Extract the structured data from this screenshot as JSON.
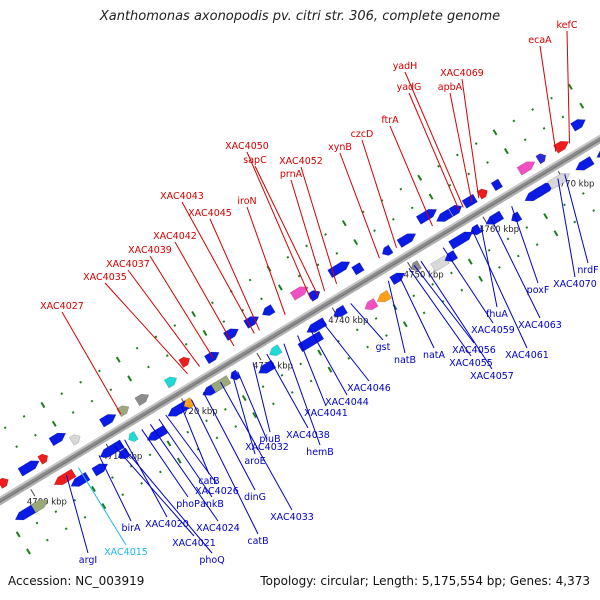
{
  "title": "Xanthomonas axonopodis pv. citri str. 306, complete genome",
  "footer": {
    "accession": "Accession: NC_003919",
    "summary": "Topology: circular; Length: 5,175,554 bp; Genes: 4,373"
  },
  "colors": {
    "forward_label": "#d40000",
    "reverse_label": "#0000cc",
    "highlight_label": "#22b8e8",
    "backbone": "#8a8a8a",
    "tick": "#1a7f1a"
  },
  "scale_labels": [
    "4700 kbp",
    "4710 kbp",
    "4720 kbp",
    "4730 kbp",
    "4740 kbp",
    "4750 kbp",
    "4760 kbp",
    "4770 kbp"
  ],
  "forward_genes": [
    "XAC4027",
    "XAC4035",
    "XAC4037",
    "XAC4039",
    "XAC4042",
    "XAC4045",
    "XAC4043",
    "iroN",
    "sapC",
    "XAC4050",
    "prnA",
    "XAC4052",
    "xynB",
    "czcD",
    "ftrA",
    "yadG",
    "yadH",
    "apbA",
    "XAC4069",
    "ecaA",
    "kefC"
  ],
  "reverse_genes": [
    "argI",
    "XAC4015",
    "birA",
    "XAC4021",
    "phoQ",
    "XAC4020",
    "phoP",
    "XAC4024",
    "ankB",
    "XAC4026",
    "catB",
    "catB",
    "dinG",
    "XAC4033",
    "aroE",
    "XAC4032",
    "piuB",
    "XAC4038",
    "hemB",
    "XAC4041",
    "XAC4044",
    "XAC4046",
    "gst",
    "natB",
    "natA",
    "XAC4055",
    "XAC4056",
    "XAC4057",
    "XAC4059",
    "XAC4061",
    "fhuA",
    "XAC4063",
    "poxF",
    "XAC4070",
    "nrdF"
  ],
  "highlighted_genes": [
    "XAC4015"
  ]
}
